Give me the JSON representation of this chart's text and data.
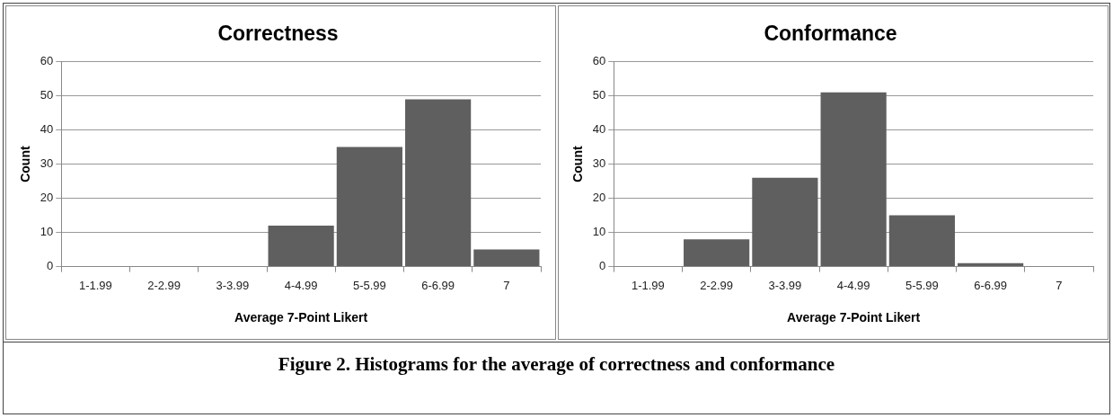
{
  "chart_data": [
    {
      "type": "bar",
      "title": "Correctness",
      "xlabel": "Average 7-Point Likert",
      "ylabel": "Count",
      "categories": [
        "1-1.99",
        "2-2.99",
        "3-3.99",
        "4-4.99",
        "5-5.99",
        "6-6.99",
        "7"
      ],
      "values": [
        0,
        0,
        0,
        12,
        35,
        49,
        5
      ],
      "color": "#5f5f5f",
      "ylim": [
        0,
        60
      ],
      "yticks": [
        0,
        10,
        20,
        30,
        40,
        50,
        60
      ],
      "grid": "y",
      "legend": false
    },
    {
      "type": "bar",
      "title": "Conformance",
      "xlabel": "Average 7-Point Likert",
      "ylabel": "Count",
      "categories": [
        "1-1.99",
        "2-2.99",
        "3-3.99",
        "4-4.99",
        "5-5.99",
        "6-6.99",
        "7"
      ],
      "values": [
        0,
        8,
        26,
        51,
        15,
        1,
        0
      ],
      "color": "#5f5f5f",
      "ylim": [
        0,
        60
      ],
      "yticks": [
        0,
        10,
        20,
        30,
        40,
        50,
        60
      ],
      "grid": "y",
      "legend": false,
      "annotations": [
        "Figure 2. Histograms for the average of correctness and conformance"
      ]
    }
  ]
}
